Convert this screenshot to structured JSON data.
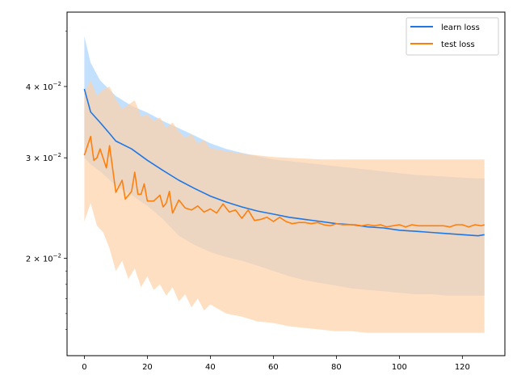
{
  "chart_data": {
    "type": "line",
    "title": "",
    "xlabel": "",
    "ylabel": "",
    "xlim": [
      -5.5,
      133.5
    ],
    "ylim": [
      0.0135,
      0.054
    ],
    "yscale": "log",
    "grid": false,
    "legend_position": "top-right",
    "x_ticks": [
      0,
      20,
      40,
      60,
      80,
      100,
      120
    ],
    "x_tick_labels": [
      "0",
      "20",
      "40",
      "60",
      "80",
      "100",
      "120"
    ],
    "y_ticks": [
      0.02,
      0.03,
      0.04
    ],
    "y_tick_labels": [
      {
        "base": "2",
        "sup": "−2"
      },
      {
        "base": "3",
        "sup": "−2"
      },
      {
        "base": "4",
        "sup": "−2"
      }
    ],
    "series": [
      {
        "name": "learn loss",
        "color": "#1f77e6",
        "band_color": "#a9d4ff",
        "points": [
          [
            0,
            0.0396
          ],
          [
            2,
            0.0361
          ],
          [
            5,
            0.0346
          ],
          [
            8,
            0.0331
          ],
          [
            10,
            0.0321
          ],
          [
            15,
            0.0311
          ],
          [
            20,
            0.0297
          ],
          [
            25,
            0.0285
          ],
          [
            30,
            0.0274
          ],
          [
            35,
            0.0265
          ],
          [
            40,
            0.0257
          ],
          [
            45,
            0.0251
          ],
          [
            50,
            0.0246
          ],
          [
            55,
            0.0242
          ],
          [
            60,
            0.0239
          ],
          [
            65,
            0.0236
          ],
          [
            70,
            0.0234
          ],
          [
            75,
            0.0232
          ],
          [
            80,
            0.023
          ],
          [
            85,
            0.0229
          ],
          [
            90,
            0.0227
          ],
          [
            95,
            0.0226
          ],
          [
            100,
            0.0224
          ],
          [
            105,
            0.0223
          ],
          [
            110,
            0.0222
          ],
          [
            115,
            0.0221
          ],
          [
            120,
            0.022
          ],
          [
            125,
            0.0219
          ],
          [
            127,
            0.022
          ]
        ],
        "band_upper": [
          [
            0,
            0.049
          ],
          [
            2,
            0.044
          ],
          [
            5,
            0.041
          ],
          [
            10,
            0.0385
          ],
          [
            15,
            0.037
          ],
          [
            20,
            0.036
          ],
          [
            25,
            0.0348
          ],
          [
            30,
            0.0338
          ],
          [
            35,
            0.0328
          ],
          [
            40,
            0.0318
          ],
          [
            45,
            0.0311
          ],
          [
            50,
            0.0306
          ],
          [
            55,
            0.0302
          ],
          [
            60,
            0.0298
          ],
          [
            65,
            0.0296
          ],
          [
            70,
            0.0294
          ],
          [
            75,
            0.0292
          ],
          [
            80,
            0.029
          ],
          [
            85,
            0.0288
          ],
          [
            90,
            0.0286
          ],
          [
            95,
            0.0284
          ],
          [
            100,
            0.0282
          ],
          [
            105,
            0.028
          ],
          [
            110,
            0.0279
          ],
          [
            115,
            0.0278
          ],
          [
            120,
            0.0277
          ],
          [
            125,
            0.0276
          ],
          [
            127,
            0.0276
          ]
        ],
        "band_lower": [
          [
            0,
            0.03
          ],
          [
            2,
            0.0292
          ],
          [
            5,
            0.0284
          ],
          [
            10,
            0.0268
          ],
          [
            15,
            0.0258
          ],
          [
            20,
            0.0247
          ],
          [
            25,
            0.0234
          ],
          [
            30,
            0.0219
          ],
          [
            35,
            0.0211
          ],
          [
            40,
            0.0205
          ],
          [
            45,
            0.0201
          ],
          [
            50,
            0.0198
          ],
          [
            55,
            0.0194
          ],
          [
            60,
            0.019
          ],
          [
            65,
            0.0186
          ],
          [
            70,
            0.0183
          ],
          [
            75,
            0.0181
          ],
          [
            80,
            0.0179
          ],
          [
            85,
            0.0177
          ],
          [
            90,
            0.0176
          ],
          [
            95,
            0.0175
          ],
          [
            100,
            0.0174
          ],
          [
            105,
            0.0173
          ],
          [
            110,
            0.0173
          ],
          [
            115,
            0.0172
          ],
          [
            120,
            0.0172
          ],
          [
            125,
            0.0172
          ],
          [
            127,
            0.0172
          ]
        ]
      },
      {
        "name": "test loss",
        "color": "#ff7f0e",
        "band_color": "#ffd1a6",
        "points": [
          [
            0,
            0.0303
          ],
          [
            2,
            0.0327
          ],
          [
            3,
            0.0297
          ],
          [
            4,
            0.03
          ],
          [
            5,
            0.0311
          ],
          [
            7,
            0.0288
          ],
          [
            8,
            0.0315
          ],
          [
            10,
            0.0261
          ],
          [
            12,
            0.0274
          ],
          [
            13,
            0.0254
          ],
          [
            15,
            0.0262
          ],
          [
            16,
            0.0283
          ],
          [
            17,
            0.0259
          ],
          [
            18,
            0.0259
          ],
          [
            19,
            0.027
          ],
          [
            20,
            0.0252
          ],
          [
            22,
            0.0252
          ],
          [
            24,
            0.0258
          ],
          [
            25,
            0.0246
          ],
          [
            26,
            0.025
          ],
          [
            27,
            0.0262
          ],
          [
            28,
            0.024
          ],
          [
            30,
            0.0253
          ],
          [
            32,
            0.0245
          ],
          [
            34,
            0.0243
          ],
          [
            36,
            0.0247
          ],
          [
            38,
            0.0241
          ],
          [
            40,
            0.0244
          ],
          [
            42,
            0.024
          ],
          [
            44,
            0.0249
          ],
          [
            46,
            0.0241
          ],
          [
            48,
            0.0243
          ],
          [
            50,
            0.0235
          ],
          [
            52,
            0.0243
          ],
          [
            54,
            0.0233
          ],
          [
            56,
            0.0234
          ],
          [
            58,
            0.0236
          ],
          [
            60,
            0.0232
          ],
          [
            62,
            0.0236
          ],
          [
            64,
            0.0232
          ],
          [
            66,
            0.023
          ],
          [
            68,
            0.0231
          ],
          [
            70,
            0.0231
          ],
          [
            72,
            0.023
          ],
          [
            74,
            0.0231
          ],
          [
            76,
            0.0229
          ],
          [
            78,
            0.0228
          ],
          [
            80,
            0.023
          ],
          [
            82,
            0.0229
          ],
          [
            84,
            0.0229
          ],
          [
            86,
            0.0229
          ],
          [
            88,
            0.0228
          ],
          [
            90,
            0.0229
          ],
          [
            92,
            0.0228
          ],
          [
            94,
            0.0229
          ],
          [
            96,
            0.0227
          ],
          [
            98,
            0.0228
          ],
          [
            100,
            0.0229
          ],
          [
            102,
            0.0227
          ],
          [
            104,
            0.0229
          ],
          [
            106,
            0.0228
          ],
          [
            108,
            0.0228
          ],
          [
            110,
            0.0228
          ],
          [
            112,
            0.0228
          ],
          [
            114,
            0.0228
          ],
          [
            116,
            0.0227
          ],
          [
            118,
            0.0229
          ],
          [
            120,
            0.0229
          ],
          [
            122,
            0.0227
          ],
          [
            124,
            0.0229
          ],
          [
            126,
            0.0228
          ],
          [
            127,
            0.0229
          ]
        ],
        "band_upper": [
          [
            0,
            0.039
          ],
          [
            2,
            0.041
          ],
          [
            4,
            0.0385
          ],
          [
            6,
            0.0395
          ],
          [
            8,
            0.04
          ],
          [
            10,
            0.038
          ],
          [
            12,
            0.0365
          ],
          [
            14,
            0.0372
          ],
          [
            16,
            0.0378
          ],
          [
            18,
            0.0355
          ],
          [
            20,
            0.0357
          ],
          [
            22,
            0.0348
          ],
          [
            24,
            0.0353
          ],
          [
            26,
            0.0338
          ],
          [
            28,
            0.0346
          ],
          [
            30,
            0.0334
          ],
          [
            32,
            0.0325
          ],
          [
            34,
            0.033
          ],
          [
            36,
            0.0318
          ],
          [
            38,
            0.0322
          ],
          [
            40,
            0.0312
          ],
          [
            45,
            0.0308
          ],
          [
            50,
            0.0305
          ],
          [
            55,
            0.0303
          ],
          [
            60,
            0.0301
          ],
          [
            65,
            0.03
          ],
          [
            70,
            0.0299
          ],
          [
            75,
            0.0298
          ],
          [
            80,
            0.0298
          ],
          [
            85,
            0.0298
          ],
          [
            90,
            0.0298
          ],
          [
            95,
            0.0298
          ],
          [
            100,
            0.0298
          ],
          [
            105,
            0.0298
          ],
          [
            110,
            0.0298
          ],
          [
            115,
            0.0298
          ],
          [
            120,
            0.0298
          ],
          [
            125,
            0.0298
          ],
          [
            127,
            0.0298
          ]
        ],
        "band_lower": [
          [
            0,
            0.0232
          ],
          [
            2,
            0.025
          ],
          [
            4,
            0.0228
          ],
          [
            6,
            0.0222
          ],
          [
            8,
            0.0208
          ],
          [
            10,
            0.019
          ],
          [
            12,
            0.0198
          ],
          [
            14,
            0.0184
          ],
          [
            16,
            0.0192
          ],
          [
            18,
            0.0178
          ],
          [
            20,
            0.0186
          ],
          [
            22,
            0.0176
          ],
          [
            24,
            0.018
          ],
          [
            26,
            0.0172
          ],
          [
            28,
            0.0178
          ],
          [
            30,
            0.0168
          ],
          [
            32,
            0.0173
          ],
          [
            34,
            0.0164
          ],
          [
            36,
            0.017
          ],
          [
            38,
            0.0162
          ],
          [
            40,
            0.0166
          ],
          [
            45,
            0.016
          ],
          [
            50,
            0.0158
          ],
          [
            55,
            0.0155
          ],
          [
            60,
            0.0154
          ],
          [
            65,
            0.0152
          ],
          [
            70,
            0.0151
          ],
          [
            75,
            0.015
          ],
          [
            80,
            0.0149
          ],
          [
            85,
            0.0149
          ],
          [
            90,
            0.0148
          ],
          [
            95,
            0.0148
          ],
          [
            100,
            0.0148
          ],
          [
            105,
            0.0148
          ],
          [
            110,
            0.0148
          ],
          [
            115,
            0.0148
          ],
          [
            120,
            0.0148
          ],
          [
            125,
            0.0148
          ],
          [
            127,
            0.0148
          ]
        ]
      }
    ]
  }
}
